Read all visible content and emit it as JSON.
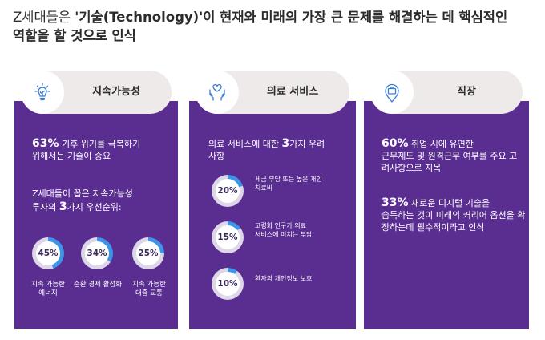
{
  "headline": {
    "pre": "Z세대들은 ",
    "bold": "'기술(Technology)'",
    "post": "이 현재와 미래의 가장 큰 문제를 해결하는 데 핵심적인",
    "line2": "역할을 할 것으로 인식"
  },
  "colors": {
    "panel": "#5a2d91",
    "pill": "#eeeaea",
    "ring_fill": "#3d95e8",
    "ring_track": "#ddd7e8"
  },
  "sustainability": {
    "title": "지속가능성",
    "icon": "lightbulb-icon",
    "stat_pct": "63%",
    "stat_line1": " 기후 위기를 극복하기",
    "stat_line2": "위해서는 기술이 중요",
    "sub_pre": "Z세대들이 꼽은 지속가능성",
    "sub_line2_pre": "투자의 ",
    "sub_num": "3",
    "sub_line2_post": "가지 우선순위:",
    "donuts": [
      {
        "value": 45,
        "label_text": "45%",
        "caption": "지속 가능한\n에너지"
      },
      {
        "value": 34,
        "label_text": "34%",
        "caption": "순환 경제 활성화"
      },
      {
        "value": 25,
        "label_text": "25%",
        "caption": "지속 가능한\n대중 교통"
      }
    ]
  },
  "medical": {
    "title": "의료 서비스",
    "icon": "heart-hands-icon",
    "intro_pre": "의료 서비스에 대한 ",
    "intro_num": "3",
    "intro_post": "가지 우려",
    "intro_line2": "사항",
    "donuts": [
      {
        "value": 20,
        "label_text": "20%",
        "caption": "세금 부담 또는 높은 개인\n치료비"
      },
      {
        "value": 15,
        "label_text": "15%",
        "caption": "고령화 인구가 의료\n서비스에 미치는 부담"
      },
      {
        "value": 10,
        "label_text": "10%",
        "caption": "환자의 개인정보 보호"
      }
    ]
  },
  "work": {
    "title": "직장",
    "icon": "briefcase-pin-icon",
    "s1_pct": "60%",
    "s1_line1": " 취업 시에 유연한",
    "s1_rest": "근무제도 및 원격근무 여부를\n주요 고려사항으로 지목",
    "s2_pct": "33%",
    "s2_line1": " 새로운 디지털 기술을",
    "s2_rest": "습득하는 것이 미래의 커리어\n옵션을 확장하는데 필수적이라고\n인식"
  }
}
